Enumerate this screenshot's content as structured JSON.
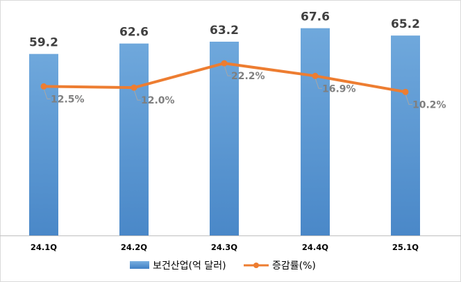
{
  "chart_data": {
    "type": "bar",
    "categories": [
      "24.1Q",
      "24.2Q",
      "24.3Q",
      "24.4Q",
      "25.1Q"
    ],
    "series": [
      {
        "name": "보건산업(억 달러)",
        "kind": "bar",
        "values": [
          59.2,
          62.6,
          63.2,
          67.6,
          65.2
        ],
        "labels": [
          "59.2",
          "62.6",
          "63.2",
          "67.6",
          "65.2"
        ],
        "color": "#5b9bd5"
      },
      {
        "name": "증감률(%)",
        "kind": "line",
        "values": [
          12.5,
          12.0,
          22.2,
          16.9,
          10.2
        ],
        "labels": [
          "12.5%",
          "12.0%",
          "22.2%",
          "16.9%",
          "10.2%"
        ],
        "color": "#ed7d31"
      }
    ],
    "bar_axis_range": [
      0,
      70
    ],
    "line_axis_range": [
      -50,
      40
    ],
    "grid": false,
    "legend_position": "bottom"
  }
}
